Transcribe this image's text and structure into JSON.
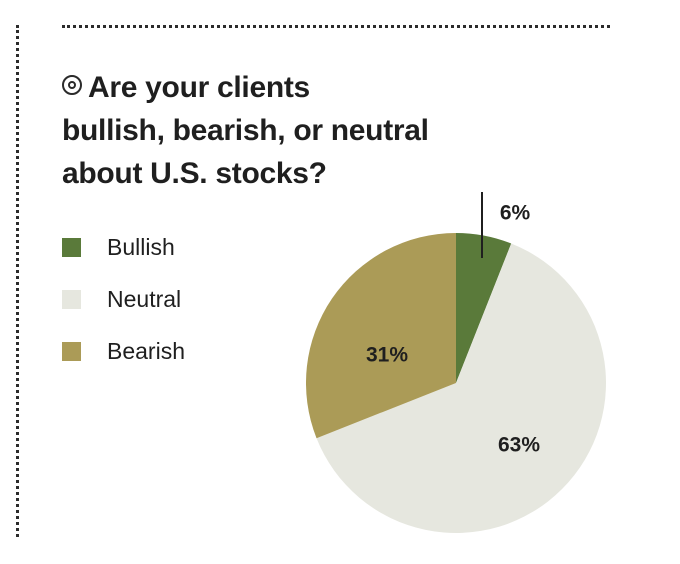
{
  "title": {
    "icon": "target-icon",
    "line1": "Are your clients",
    "line2": "bullish, bearish, or neutral",
    "line3": "about U.S. stocks?"
  },
  "chart_data": {
    "type": "pie",
    "title": "Are your clients bullish, bearish, or neutral about U.S. stocks?",
    "categories": [
      "Bullish",
      "Neutral",
      "Bearish"
    ],
    "values": [
      6,
      63,
      31
    ],
    "labels": [
      "6%",
      "63%",
      "31%"
    ],
    "colors": [
      "#5a7a3a",
      "#e6e7df",
      "#ab9b57"
    ],
    "legend_position": "left",
    "start_angle_deg": 0,
    "direction": "clockwise"
  }
}
